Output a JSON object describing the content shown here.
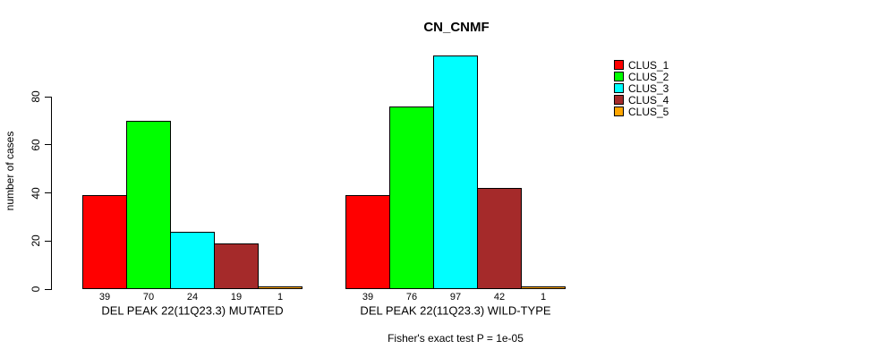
{
  "chart_data": {
    "type": "bar",
    "title": "CN_CNMF",
    "ylabel": "number of cases",
    "yticks": [
      0,
      20,
      40,
      60,
      80
    ],
    "ylim": [
      0,
      100
    ],
    "grid": false,
    "legend_position": "right",
    "categories": [
      "CLUS_1",
      "CLUS_2",
      "CLUS_3",
      "CLUS_4",
      "CLUS_5"
    ],
    "groups": [
      {
        "label": "DEL PEAK 22(11Q23.3) MUTATED",
        "values": [
          39,
          70,
          24,
          19,
          1
        ]
      },
      {
        "label": "DEL PEAK 22(11Q23.3) WILD-TYPE",
        "values": [
          39,
          76,
          97,
          42,
          1
        ]
      }
    ],
    "legend": [
      {
        "label": "CLUS_1",
        "color": "#ff0000"
      },
      {
        "label": "CLUS_2",
        "color": "#00ff00"
      },
      {
        "label": "CLUS_3",
        "color": "#00ffff"
      },
      {
        "label": "CLUS_4",
        "color": "#a52a2a"
      },
      {
        "label": "CLUS_5",
        "color": "#ffa500"
      }
    ],
    "annotation": "Fisher's exact test P = 1e-05",
    "colors": {
      "axis": "#000000",
      "bar_border": "#000000",
      "background": "#ffffff",
      "text": "#000000"
    }
  }
}
